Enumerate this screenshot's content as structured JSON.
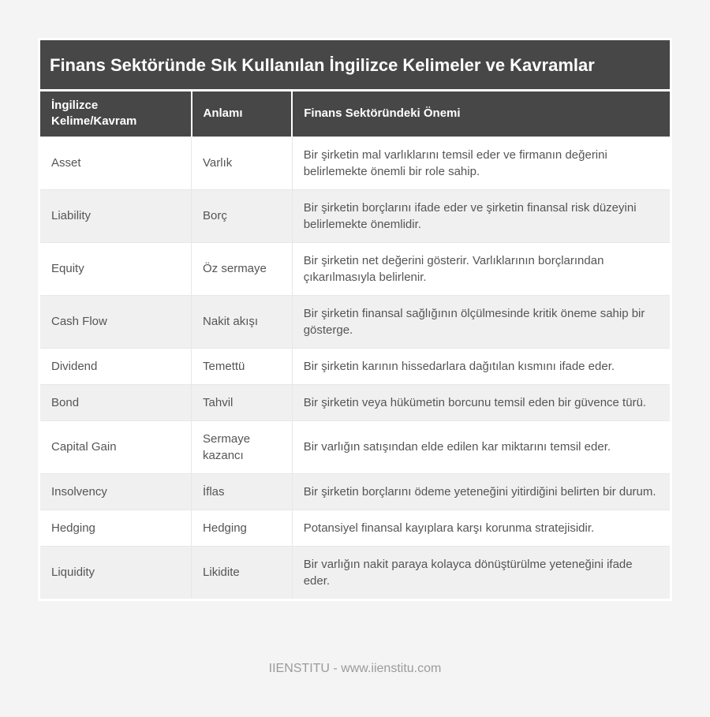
{
  "page": {
    "title": "Finans Sektöründe Sık Kullanılan İngilizce Kelimeler ve Kavramlar",
    "footer": "IIENSTITU - www.iienstitu.com"
  },
  "colors": {
    "header_bg": "#474747",
    "header_text": "#ffffff",
    "row_alt_bg": "#f0f0f0",
    "body_text": "#555555",
    "page_bg": "#f5f4f5",
    "footer_text": "#9b9b9b"
  },
  "table": {
    "columns": [
      "İngilizce Kelime/Kavram",
      "Anlamı",
      "Finans Sektöründeki Önemi"
    ],
    "rows": [
      {
        "term": "Asset",
        "meaning": "Varlık",
        "importance": "Bir şirketin mal varlıklarını temsil eder ve firmanın değerini belirlemekte önemli bir role sahip."
      },
      {
        "term": "Liability",
        "meaning": "Borç",
        "importance": "Bir şirketin borçlarını ifade eder ve şirketin finansal risk düzeyini belirlemekte önemlidir."
      },
      {
        "term": "Equity",
        "meaning": "Öz sermaye",
        "importance": "Bir şirketin net değerini gösterir. Varlıklarının borçlarından çıkarılmasıyla belirlenir."
      },
      {
        "term": "Cash Flow",
        "meaning": "Nakit akışı",
        "importance": "Bir şirketin finansal sağlığının ölçülmesinde kritik öneme sahip bir gösterge."
      },
      {
        "term": "Dividend",
        "meaning": "Temettü",
        "importance": "Bir şirketin karının hissedarlara dağıtılan kısmını ifade eder."
      },
      {
        "term": "Bond",
        "meaning": "Tahvil",
        "importance": "Bir şirketin veya hükümetin borcunu temsil eden bir güvence türü."
      },
      {
        "term": "Capital Gain",
        "meaning": "Sermaye kazancı",
        "importance": "Bir varlığın satışından elde edilen kar miktarını temsil eder."
      },
      {
        "term": "Insolvency",
        "meaning": "İflas",
        "importance": "Bir şirketin borçlarını ödeme yeteneğini yitirdiğini belirten bir durum."
      },
      {
        "term": "Hedging",
        "meaning": "Hedging",
        "importance": "Potansiyel finansal kayıplara karşı korunma stratejisidir."
      },
      {
        "term": "Liquidity",
        "meaning": "Likidite",
        "importance": "Bir varlığın nakit paraya kolayca dönüştürülme yeteneğini ifade eder."
      }
    ]
  }
}
